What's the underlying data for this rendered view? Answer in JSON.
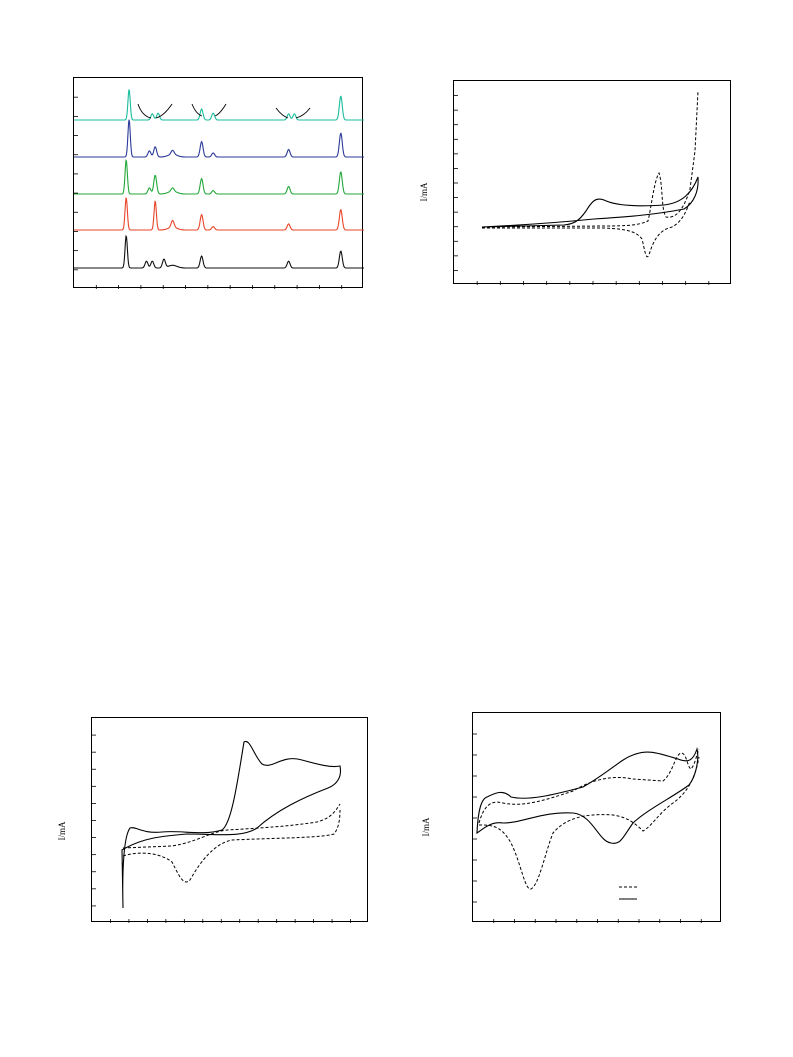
{
  "page": {
    "background": "#ffffff"
  },
  "chart_data": [
    {
      "id": "xrd-stack",
      "type": "line",
      "title": "",
      "xlabel": "",
      "ylabel": "",
      "grid": false,
      "series": [
        {
          "color": "#1abc9c",
          "peaks": [
            [
              0.19,
              0.9
            ],
            [
              0.27,
              0.18
            ],
            [
              0.29,
              0.2
            ],
            [
              0.44,
              0.32
            ],
            [
              0.48,
              0.2
            ],
            [
              0.74,
              0.18
            ],
            [
              0.76,
              0.18
            ],
            [
              0.92,
              0.7
            ]
          ]
        },
        {
          "color": "#2b3a9a",
          "peaks": [
            [
              0.19,
              1.1
            ],
            [
              0.26,
              0.18
            ],
            [
              0.28,
              0.3
            ],
            [
              0.34,
              0.12
            ],
            [
              0.44,
              0.45
            ],
            [
              0.48,
              0.12
            ],
            [
              0.74,
              0.22
            ],
            [
              0.92,
              0.7
            ]
          ]
        },
        {
          "color": "#22a83a",
          "peaks": [
            [
              0.18,
              1.0
            ],
            [
              0.26,
              0.18
            ],
            [
              0.28,
              0.55
            ],
            [
              0.34,
              0.1
            ],
            [
              0.44,
              0.45
            ],
            [
              0.48,
              0.1
            ],
            [
              0.74,
              0.22
            ],
            [
              0.92,
              0.65
            ]
          ]
        },
        {
          "color": "#e8452a",
          "peaks": [
            [
              0.18,
              0.95
            ],
            [
              0.28,
              0.85
            ],
            [
              0.34,
              0.2
            ],
            [
              0.44,
              0.45
            ],
            [
              0.48,
              0.1
            ],
            [
              0.74,
              0.18
            ],
            [
              0.92,
              0.6
            ]
          ]
        },
        {
          "color": "#111111",
          "peaks": [
            [
              0.18,
              0.95
            ],
            [
              0.25,
              0.2
            ],
            [
              0.27,
              0.2
            ],
            [
              0.31,
              0.25
            ],
            [
              0.44,
              0.35
            ],
            [
              0.74,
              0.2
            ],
            [
              0.92,
              0.5
            ]
          ]
        }
      ]
    },
    {
      "id": "cv-top-right",
      "type": "line",
      "ylabel": "I/mA",
      "series": [
        {
          "style": "solid"
        },
        {
          "style": "dashed"
        }
      ]
    },
    {
      "id": "cv-bottom-left",
      "type": "line",
      "ylabel": "I/mA",
      "series": [
        {
          "style": "solid"
        },
        {
          "style": "dashed"
        }
      ]
    },
    {
      "id": "cv-bottom-right",
      "type": "line",
      "ylabel": "I/mA",
      "legend": {
        "placement": "bottom-right"
      },
      "series": [
        {
          "style": "dashed"
        },
        {
          "style": "solid"
        }
      ]
    }
  ]
}
